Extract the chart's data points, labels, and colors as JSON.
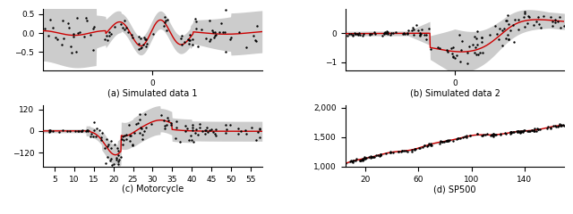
{
  "fig_width": 6.4,
  "fig_height": 2.4,
  "dpi": 100,
  "background_color": "#ffffff",
  "fill_color": "#cccccc",
  "line_color": "#cc0000",
  "scatter_color": "#000000",
  "captions": [
    "(a) Simulated data 1",
    "(b) Simulated data 2",
    "(c) Motorcycle",
    "(d) SP500"
  ],
  "ax1": {
    "xlim": [
      -3.5,
      3.5
    ],
    "ylim": [
      -1.0,
      0.65
    ],
    "yticks": [
      -0.5,
      0.0,
      0.5
    ],
    "xticks": [
      0
    ]
  },
  "ax2": {
    "xlim": [
      -3.5,
      3.5
    ],
    "ylim": [
      -1.3,
      0.85
    ],
    "yticks": [
      -1.0,
      0.0
    ],
    "xticks": [
      0
    ]
  },
  "ax3": {
    "xlim": [
      2,
      58
    ],
    "ylim": [
      -200,
      145
    ],
    "yticks": [
      -120,
      0,
      120
    ],
    "xticks": [
      5,
      10,
      15,
      20,
      25,
      30,
      35,
      40,
      45,
      50,
      55
    ]
  },
  "ax4": {
    "xlim": [
      5,
      170
    ],
    "ylim": [
      990,
      2050
    ],
    "yticks": [
      1000,
      1500,
      2000
    ],
    "yticklabels": [
      "1,000",
      "1,500",
      "2,000"
    ],
    "xticks": [
      20,
      60,
      100,
      140
    ]
  }
}
